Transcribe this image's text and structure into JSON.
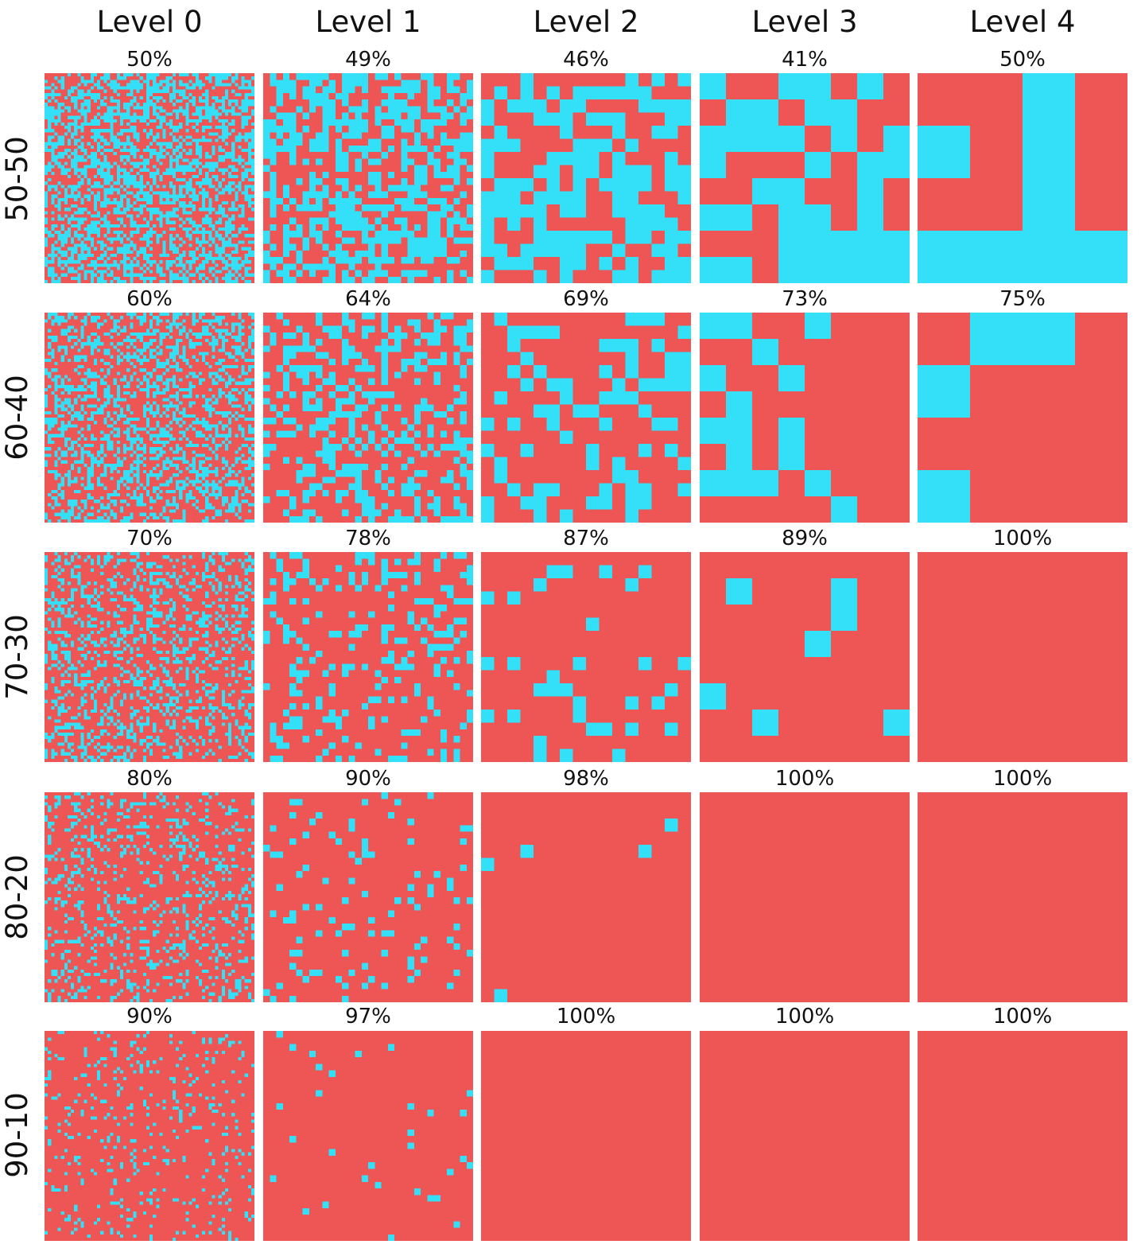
{
  "colors": {
    "majority": "#EE5555",
    "minority": "#33E0F8",
    "background": "#FFFFFF"
  },
  "levels": [
    "Level 0",
    "Level 1",
    "Level 2",
    "Level 3",
    "Level 4"
  ],
  "grid_sizes": [
    64,
    32,
    16,
    8,
    4
  ],
  "rows": [
    {
      "label": "50-50",
      "majority_fraction": 0.5,
      "percentages": [
        "50%",
        "49%",
        "46%",
        "41%",
        "50%"
      ]
    },
    {
      "label": "60-40",
      "majority_fraction": 0.6,
      "percentages": [
        "60%",
        "64%",
        "69%",
        "73%",
        "75%"
      ]
    },
    {
      "label": "70-30",
      "majority_fraction": 0.7,
      "percentages": [
        "70%",
        "78%",
        "87%",
        "89%",
        "100%"
      ]
    },
    {
      "label": "80-20",
      "majority_fraction": 0.8,
      "percentages": [
        "80%",
        "90%",
        "98%",
        "100%",
        "100%"
      ]
    },
    {
      "label": "90-10",
      "majority_fraction": 0.9,
      "percentages": [
        "90%",
        "97%",
        "100%",
        "100%",
        "100%"
      ]
    }
  ]
}
